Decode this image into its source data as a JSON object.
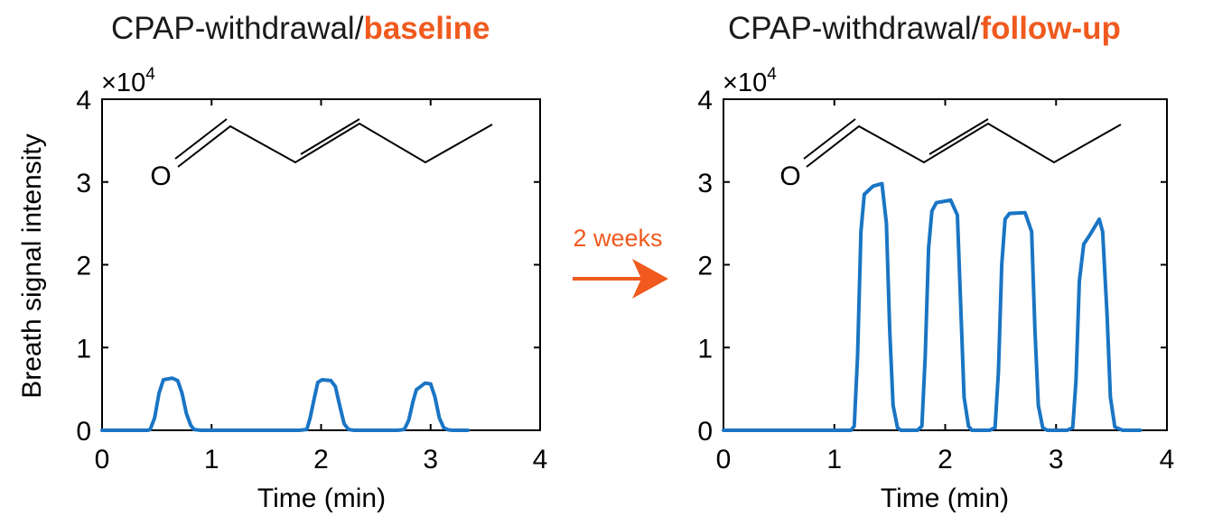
{
  "arrow": {
    "label": "2 weeks",
    "color": "#f05a1e"
  },
  "chart_data": [
    {
      "type": "line",
      "title": "CPAP-withdrawal/",
      "title_accent": "baseline",
      "xlabel": "Time (min)",
      "ylabel": "Breath signal intensity",
      "xlim": [
        0,
        4
      ],
      "ylim": [
        0,
        40000
      ],
      "xticks": [
        0,
        1,
        2,
        3,
        4
      ],
      "yticks": [
        0,
        1,
        2,
        3,
        4
      ],
      "y_multiplier": "×10",
      "y_multiplier_exp": "4",
      "molecule_atom_label": "O",
      "grid": false,
      "series": [
        {
          "color": "#1a75c4",
          "x": [
            0,
            0.42,
            0.44,
            0.48,
            0.52,
            0.56,
            0.64,
            0.69,
            0.73,
            0.77,
            0.81,
            0.84,
            0.9,
            1.0,
            1.3,
            1.6,
            1.8,
            1.87,
            1.9,
            1.94,
            1.97,
            2.01,
            2.09,
            2.13,
            2.17,
            2.21,
            2.25,
            2.3,
            2.5,
            2.7,
            2.76,
            2.8,
            2.84,
            2.87,
            2.9,
            2.95,
            3.0,
            3.04,
            3.08,
            3.12,
            3.16,
            3.2,
            3.34
          ],
          "y": [
            0,
            0,
            100,
            1500,
            4500,
            6100,
            6300,
            6000,
            4500,
            2000,
            600,
            100,
            0,
            0,
            0,
            0,
            0,
            100,
            1500,
            4000,
            5800,
            6100,
            6000,
            5300,
            3000,
            800,
            100,
            0,
            0,
            0,
            100,
            1200,
            3500,
            4900,
            5200,
            5700,
            5600,
            4000,
            1500,
            300,
            50,
            0,
            0
          ]
        }
      ]
    },
    {
      "type": "line",
      "title": "CPAP-withdrawal/",
      "title_accent": "follow-up",
      "xlabel": "Time (min)",
      "ylabel": "",
      "xlim": [
        0,
        4
      ],
      "ylim": [
        0,
        40000
      ],
      "xticks": [
        0,
        1,
        2,
        3,
        4
      ],
      "yticks": [
        0,
        1,
        2,
        3,
        4
      ],
      "y_multiplier": "×10",
      "y_multiplier_exp": "4",
      "molecule_atom_label": "O",
      "grid": false,
      "series": [
        {
          "color": "#1a75c4",
          "x": [
            0,
            0.5,
            1.0,
            1.15,
            1.18,
            1.21,
            1.24,
            1.27,
            1.35,
            1.43,
            1.47,
            1.5,
            1.53,
            1.57,
            1.6,
            1.65,
            1.75,
            1.79,
            1.82,
            1.85,
            1.88,
            1.92,
            2.05,
            2.11,
            2.14,
            2.17,
            2.21,
            2.24,
            2.3,
            2.4,
            2.45,
            2.48,
            2.51,
            2.54,
            2.58,
            2.72,
            2.78,
            2.81,
            2.84,
            2.88,
            2.92,
            3.0,
            3.1,
            3.15,
            3.18,
            3.21,
            3.25,
            3.3,
            3.39,
            3.42,
            3.46,
            3.49,
            3.53,
            3.6,
            3.76
          ],
          "y": [
            0,
            0,
            0,
            0,
            500,
            9000,
            24000,
            28500,
            29500,
            29800,
            25000,
            12000,
            3000,
            300,
            0,
            0,
            0,
            500,
            9000,
            22000,
            26500,
            27500,
            27800,
            26000,
            15000,
            4000,
            500,
            0,
            0,
            0,
            300,
            7000,
            20000,
            25500,
            26200,
            26300,
            24000,
            12000,
            3000,
            300,
            0,
            0,
            0,
            300,
            6000,
            18000,
            22500,
            23500,
            25500,
            24000,
            14000,
            4000,
            400,
            0,
            0
          ]
        }
      ]
    }
  ]
}
